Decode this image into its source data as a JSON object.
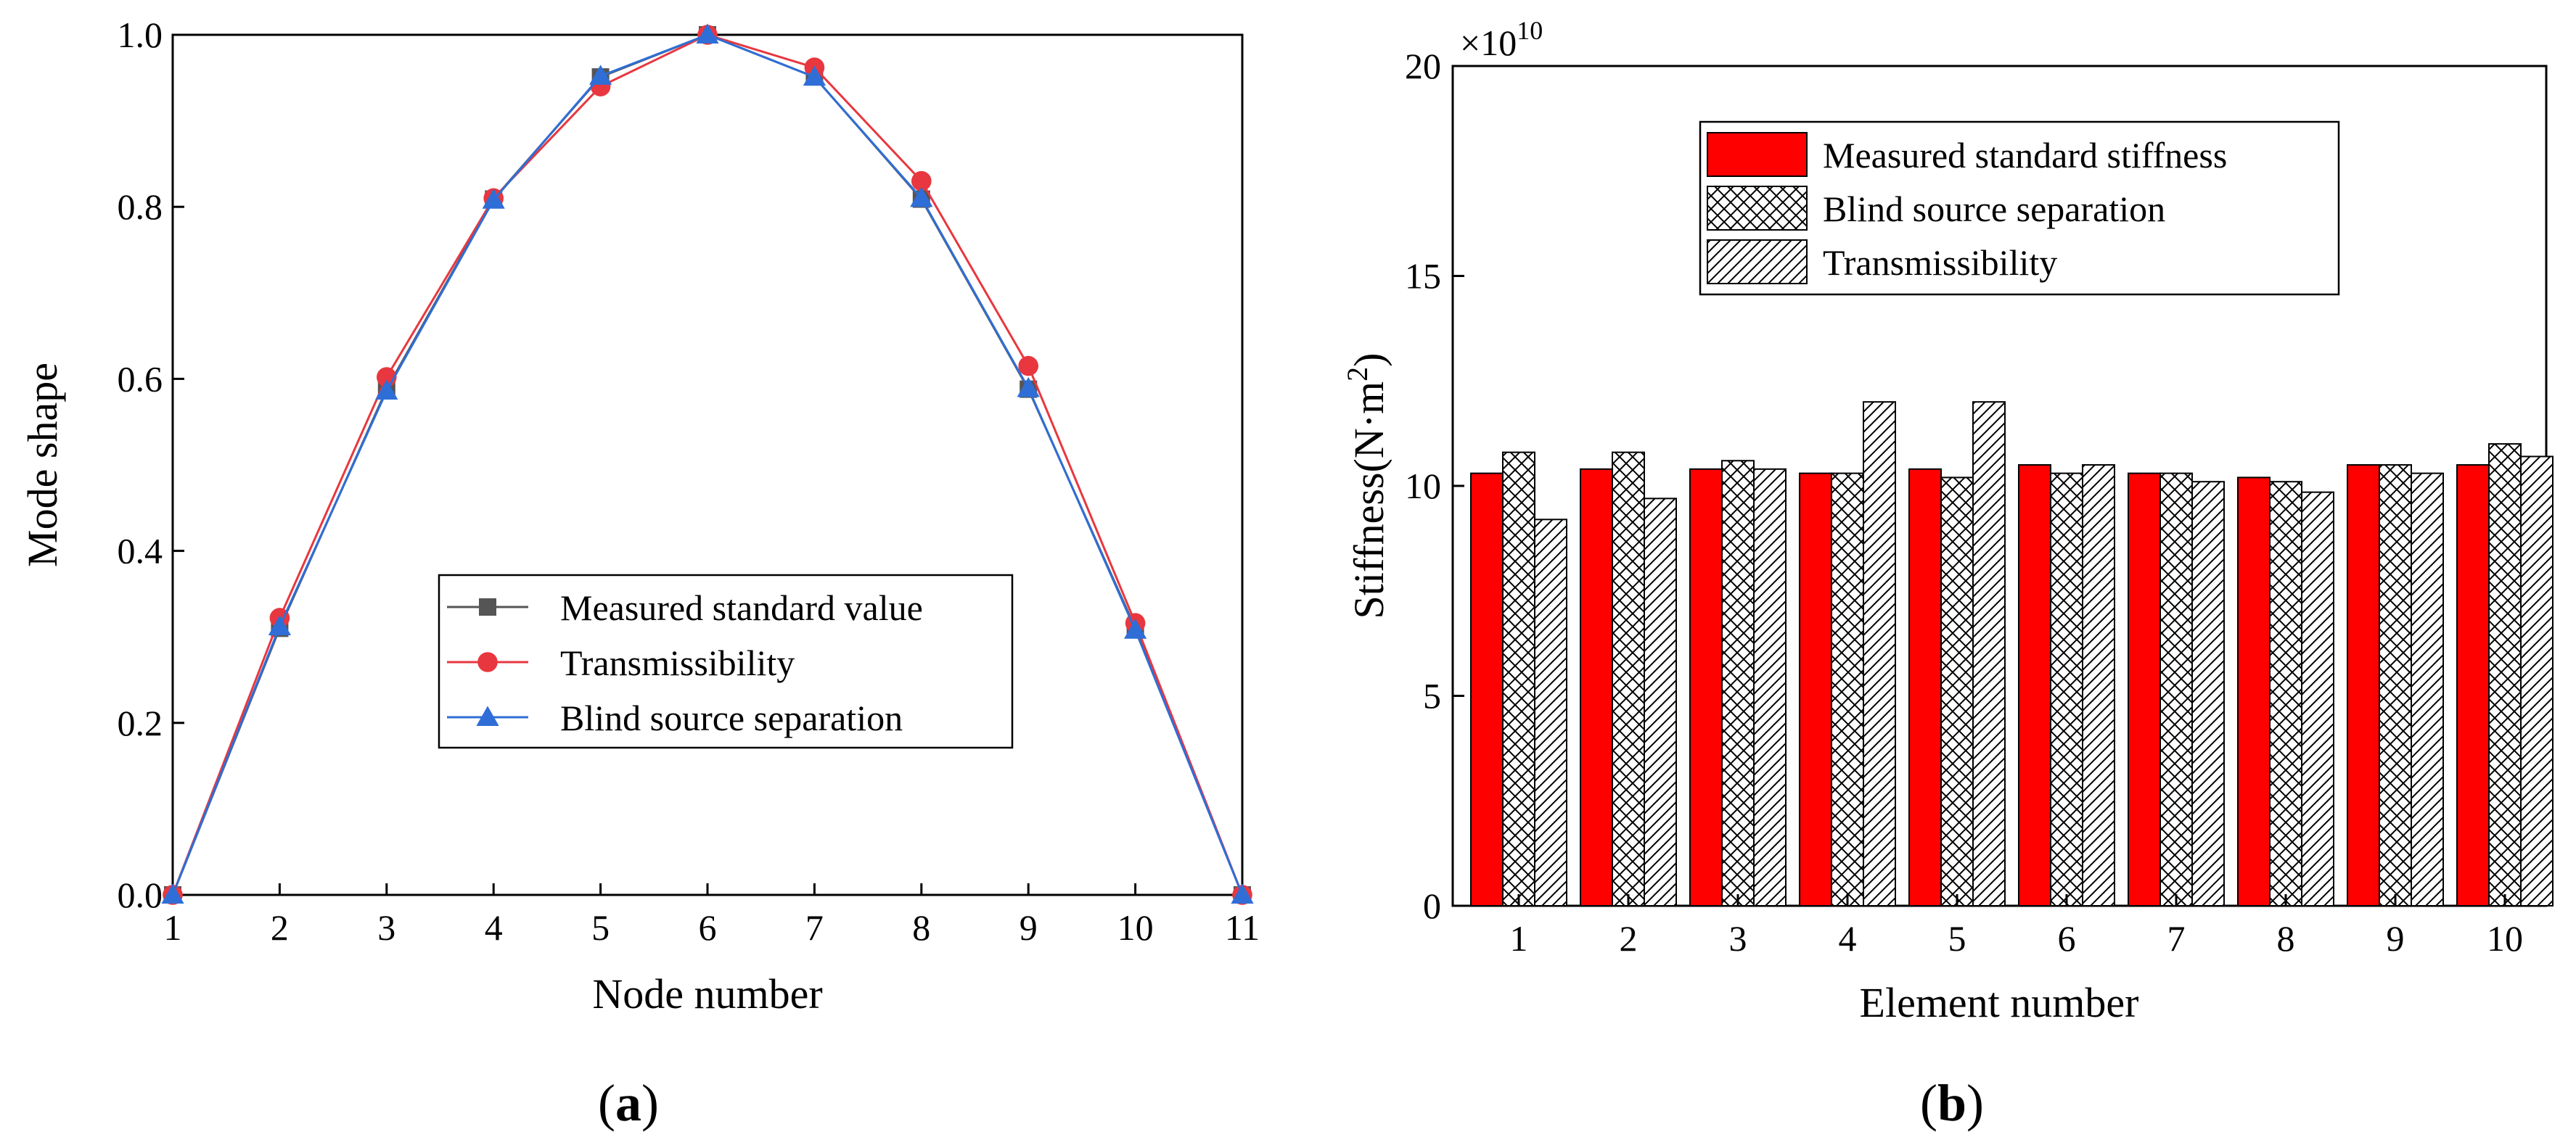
{
  "chart_data": [
    {
      "type": "line",
      "panel_label": "a",
      "title": "",
      "xlabel": "Node number",
      "ylabel": "Mode shape",
      "xlim": [
        1,
        11
      ],
      "ylim": [
        0,
        1.0
      ],
      "xticks": [
        "1",
        "2",
        "3",
        "4",
        "5",
        "6",
        "7",
        "8",
        "9",
        "10",
        "11"
      ],
      "yticks": [
        "0.0",
        "0.2",
        "0.4",
        "0.6",
        "0.8",
        "1.0"
      ],
      "legend_position": "center-bottom",
      "x": [
        1,
        2,
        3,
        4,
        5,
        6,
        7,
        8,
        9,
        10,
        11
      ],
      "series": [
        {
          "name": "Measured standard value",
          "color": "#555555",
          "marker": "square",
          "values": [
            0,
            0.31,
            0.588,
            0.809,
            0.951,
            1.0,
            0.951,
            0.809,
            0.588,
            0.31,
            0
          ]
        },
        {
          "name": "Transmissibility",
          "color": "#e8373f",
          "marker": "circle",
          "values": [
            0,
            0.322,
            0.602,
            0.81,
            0.94,
            1.0,
            0.962,
            0.83,
            0.615,
            0.316,
            0
          ]
        },
        {
          "name": "Blind source separation",
          "color": "#2f6ed6",
          "marker": "triangle",
          "values": [
            0,
            0.312,
            0.586,
            0.808,
            0.952,
            1.0,
            0.951,
            0.81,
            0.589,
            0.308,
            0
          ]
        }
      ]
    },
    {
      "type": "bar",
      "panel_label": "b",
      "title": "",
      "xlabel": "Element number",
      "ylabel": "Stiffness(N·m",
      "ylabel_sup": "2",
      "ylabel_end": ")",
      "scale_base": "×10",
      "scale_exp": "10",
      "ylim": [
        0,
        20
      ],
      "yticks": [
        "0",
        "5",
        "10",
        "15",
        "20"
      ],
      "categories": [
        "1",
        "2",
        "3",
        "4",
        "5",
        "6",
        "7",
        "8",
        "9",
        "10"
      ],
      "legend_position": "top-center",
      "series": [
        {
          "name": "Measured standard stiffness",
          "color": "#ff0000",
          "pattern": "solid",
          "values": [
            10.3,
            10.4,
            10.4,
            10.3,
            10.4,
            10.5,
            10.3,
            10.2,
            10.5,
            10.5
          ]
        },
        {
          "name": "Blind source separation",
          "color": "#ffffff",
          "pattern": "crosshatch",
          "values": [
            10.8,
            10.8,
            10.6,
            10.3,
            10.2,
            10.3,
            10.3,
            10.1,
            10.5,
            11.0
          ]
        },
        {
          "name": "Transmissibility",
          "color": "#ffffff",
          "pattern": "diagonal",
          "values": [
            9.2,
            9.7,
            10.4,
            12.0,
            12.0,
            10.5,
            10.1,
            9.85,
            10.3,
            10.7
          ]
        }
      ]
    }
  ]
}
